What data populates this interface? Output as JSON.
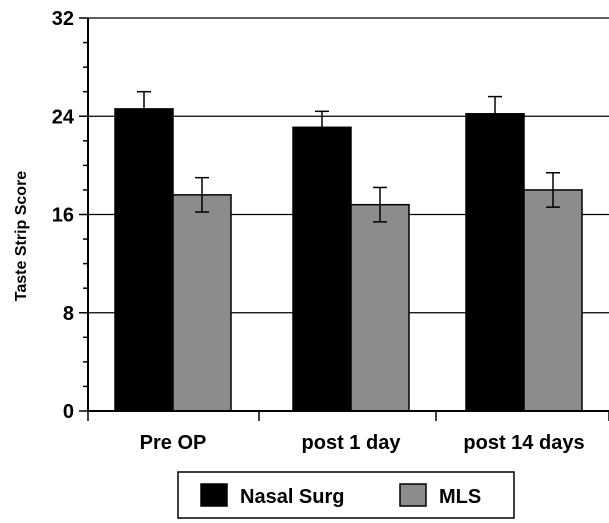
{
  "chart_data": {
    "type": "bar",
    "title": "",
    "xlabel": "",
    "ylabel": "Taste Strip Score",
    "ylim": [
      0,
      32
    ],
    "yticks": [
      0,
      8,
      16,
      24,
      32
    ],
    "grid": true,
    "legend_position": "bottom",
    "categories": [
      "Pre OP",
      "post 1 day",
      "post 14 days"
    ],
    "series": [
      {
        "name": "Nasal Surg",
        "color": "#000000",
        "values": [
          24.6,
          23.1,
          24.2
        ],
        "error": [
          1.4,
          1.3,
          1.4
        ]
      },
      {
        "name": "MLS",
        "color": "#8c8c8c",
        "values": [
          17.6,
          16.8,
          18.0
        ],
        "error": [
          1.4,
          1.4,
          1.4
        ]
      }
    ]
  }
}
